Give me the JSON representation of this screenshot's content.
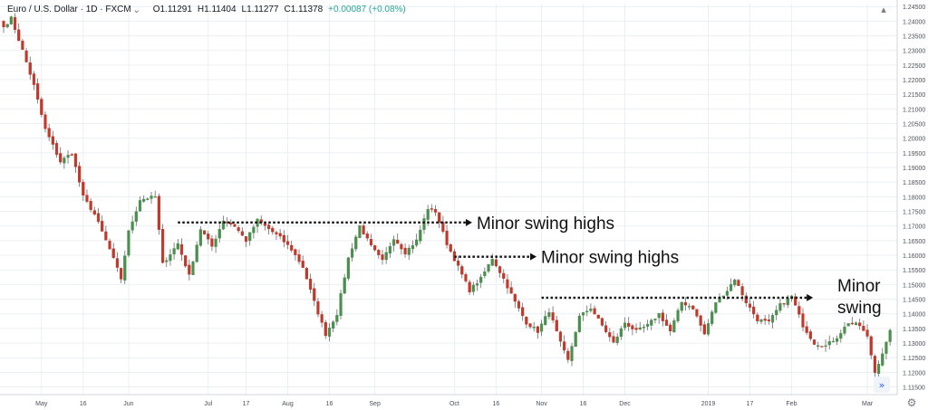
{
  "header": {
    "symbol": "Euro / U.S. Dollar · 1D · FXCM",
    "open": "O1.11291",
    "high": "H1.11404",
    "low": "L1.11277",
    "close": "C1.11378",
    "change": "+0.00087 (+0.08%)"
  },
  "icons": {
    "dropdown": "chevron-down-icon",
    "collapse": "collapse-icon",
    "settings": "settings-gear-icon",
    "scroll": "scroll-right-icon"
  },
  "colors": {
    "up": "#4a8f4e",
    "down": "#c0392b",
    "grid": "#eceff2",
    "axis_text": "#4a4f59"
  },
  "chart_data": {
    "type": "candlestick",
    "instrument": "Euro / U.S. Dollar",
    "timeframe": "1D",
    "y_ticks": [
      "1.24500",
      "1.24000",
      "1.23500",
      "1.23000",
      "1.22500",
      "1.22000",
      "1.21500",
      "1.21000",
      "1.20500",
      "1.20000",
      "1.19500",
      "1.19000",
      "1.18500",
      "1.18000",
      "1.17500",
      "1.17000",
      "1.16500",
      "1.16000",
      "1.15500",
      "1.15000",
      "1.14500",
      "1.14000",
      "1.13500",
      "1.13000",
      "1.12500",
      "1.12000",
      "1.11500"
    ],
    "ylim": [
      1.113,
      1.246
    ],
    "x_ticks": [
      {
        "label": "May",
        "i": 10
      },
      {
        "label": "16",
        "i": 21
      },
      {
        "label": "Jun",
        "i": 33
      },
      {
        "label": "Jul",
        "i": 54
      },
      {
        "label": "17",
        "i": 64
      },
      {
        "label": "Aug",
        "i": 75
      },
      {
        "label": "16",
        "i": 86
      },
      {
        "label": "Sep",
        "i": 98
      },
      {
        "label": "Oct",
        "i": 119
      },
      {
        "label": "16",
        "i": 130
      },
      {
        "label": "Nov",
        "i": 142
      },
      {
        "label": "16",
        "i": 153
      },
      {
        "label": "Dec",
        "i": 164
      },
      {
        "label": "2019",
        "i": 186
      },
      {
        "label": "17",
        "i": 197
      },
      {
        "label": "Feb",
        "i": 208
      },
      {
        "label": "Mar",
        "i": 228
      }
    ],
    "anchors": [
      [
        0,
        1.238
      ],
      [
        2,
        1.241
      ],
      [
        5,
        1.23
      ],
      [
        8,
        1.218
      ],
      [
        11,
        1.203
      ],
      [
        15,
        1.192
      ],
      [
        18,
        1.195
      ],
      [
        21,
        1.18
      ],
      [
        24,
        1.174
      ],
      [
        28,
        1.162
      ],
      [
        31,
        1.152
      ],
      [
        33,
        1.168
      ],
      [
        36,
        1.179
      ],
      [
        40,
        1.18
      ],
      [
        42,
        1.157
      ],
      [
        46,
        1.164
      ],
      [
        49,
        1.153
      ],
      [
        52,
        1.169
      ],
      [
        55,
        1.163
      ],
      [
        58,
        1.172
      ],
      [
        61,
        1.17
      ],
      [
        64,
        1.165
      ],
      [
        67,
        1.172
      ],
      [
        70,
        1.169
      ],
      [
        73,
        1.166
      ],
      [
        76,
        1.162
      ],
      [
        79,
        1.156
      ],
      [
        82,
        1.144
      ],
      [
        85,
        1.133
      ],
      [
        88,
        1.14
      ],
      [
        91,
        1.159
      ],
      [
        94,
        1.17
      ],
      [
        97,
        1.163
      ],
      [
        100,
        1.158
      ],
      [
        103,
        1.166
      ],
      [
        106,
        1.161
      ],
      [
        109,
        1.165
      ],
      [
        112,
        1.176
      ],
      [
        114,
        1.175
      ],
      [
        117,
        1.164
      ],
      [
        120,
        1.156
      ],
      [
        123,
        1.148
      ],
      [
        126,
        1.152
      ],
      [
        129,
        1.159
      ],
      [
        132,
        1.152
      ],
      [
        135,
        1.144
      ],
      [
        138,
        1.137
      ],
      [
        141,
        1.134
      ],
      [
        144,
        1.141
      ],
      [
        147,
        1.13
      ],
      [
        149,
        1.124
      ],
      [
        152,
        1.139
      ],
      [
        155,
        1.142
      ],
      [
        158,
        1.136
      ],
      [
        161,
        1.13
      ],
      [
        164,
        1.137
      ],
      [
        167,
        1.134
      ],
      [
        170,
        1.136
      ],
      [
        173,
        1.14
      ],
      [
        176,
        1.134
      ],
      [
        179,
        1.144
      ],
      [
        182,
        1.142
      ],
      [
        185,
        1.133
      ],
      [
        188,
        1.144
      ],
      [
        191,
        1.148
      ],
      [
        193,
        1.152
      ],
      [
        196,
        1.144
      ],
      [
        199,
        1.138
      ],
      [
        202,
        1.137
      ],
      [
        205,
        1.143
      ],
      [
        208,
        1.146
      ],
      [
        211,
        1.136
      ],
      [
        214,
        1.13
      ],
      [
        217,
        1.129
      ],
      [
        220,
        1.132
      ],
      [
        223,
        1.137
      ],
      [
        226,
        1.136
      ],
      [
        228,
        1.132
      ],
      [
        230,
        1.12
      ],
      [
        233,
        1.13
      ],
      [
        234,
        1.1338
      ]
    ],
    "annotations": [
      {
        "text": "Minor swing highs",
        "price": 1.1712,
        "from_i": 46,
        "to_i": 122
      },
      {
        "text": "Minor swing highs",
        "price": 1.1595,
        "from_i": 119,
        "to_i": 139
      },
      {
        "text": "Minor swing",
        "price": 1.1455,
        "from_i": 142,
        "to_i": 212
      }
    ]
  }
}
